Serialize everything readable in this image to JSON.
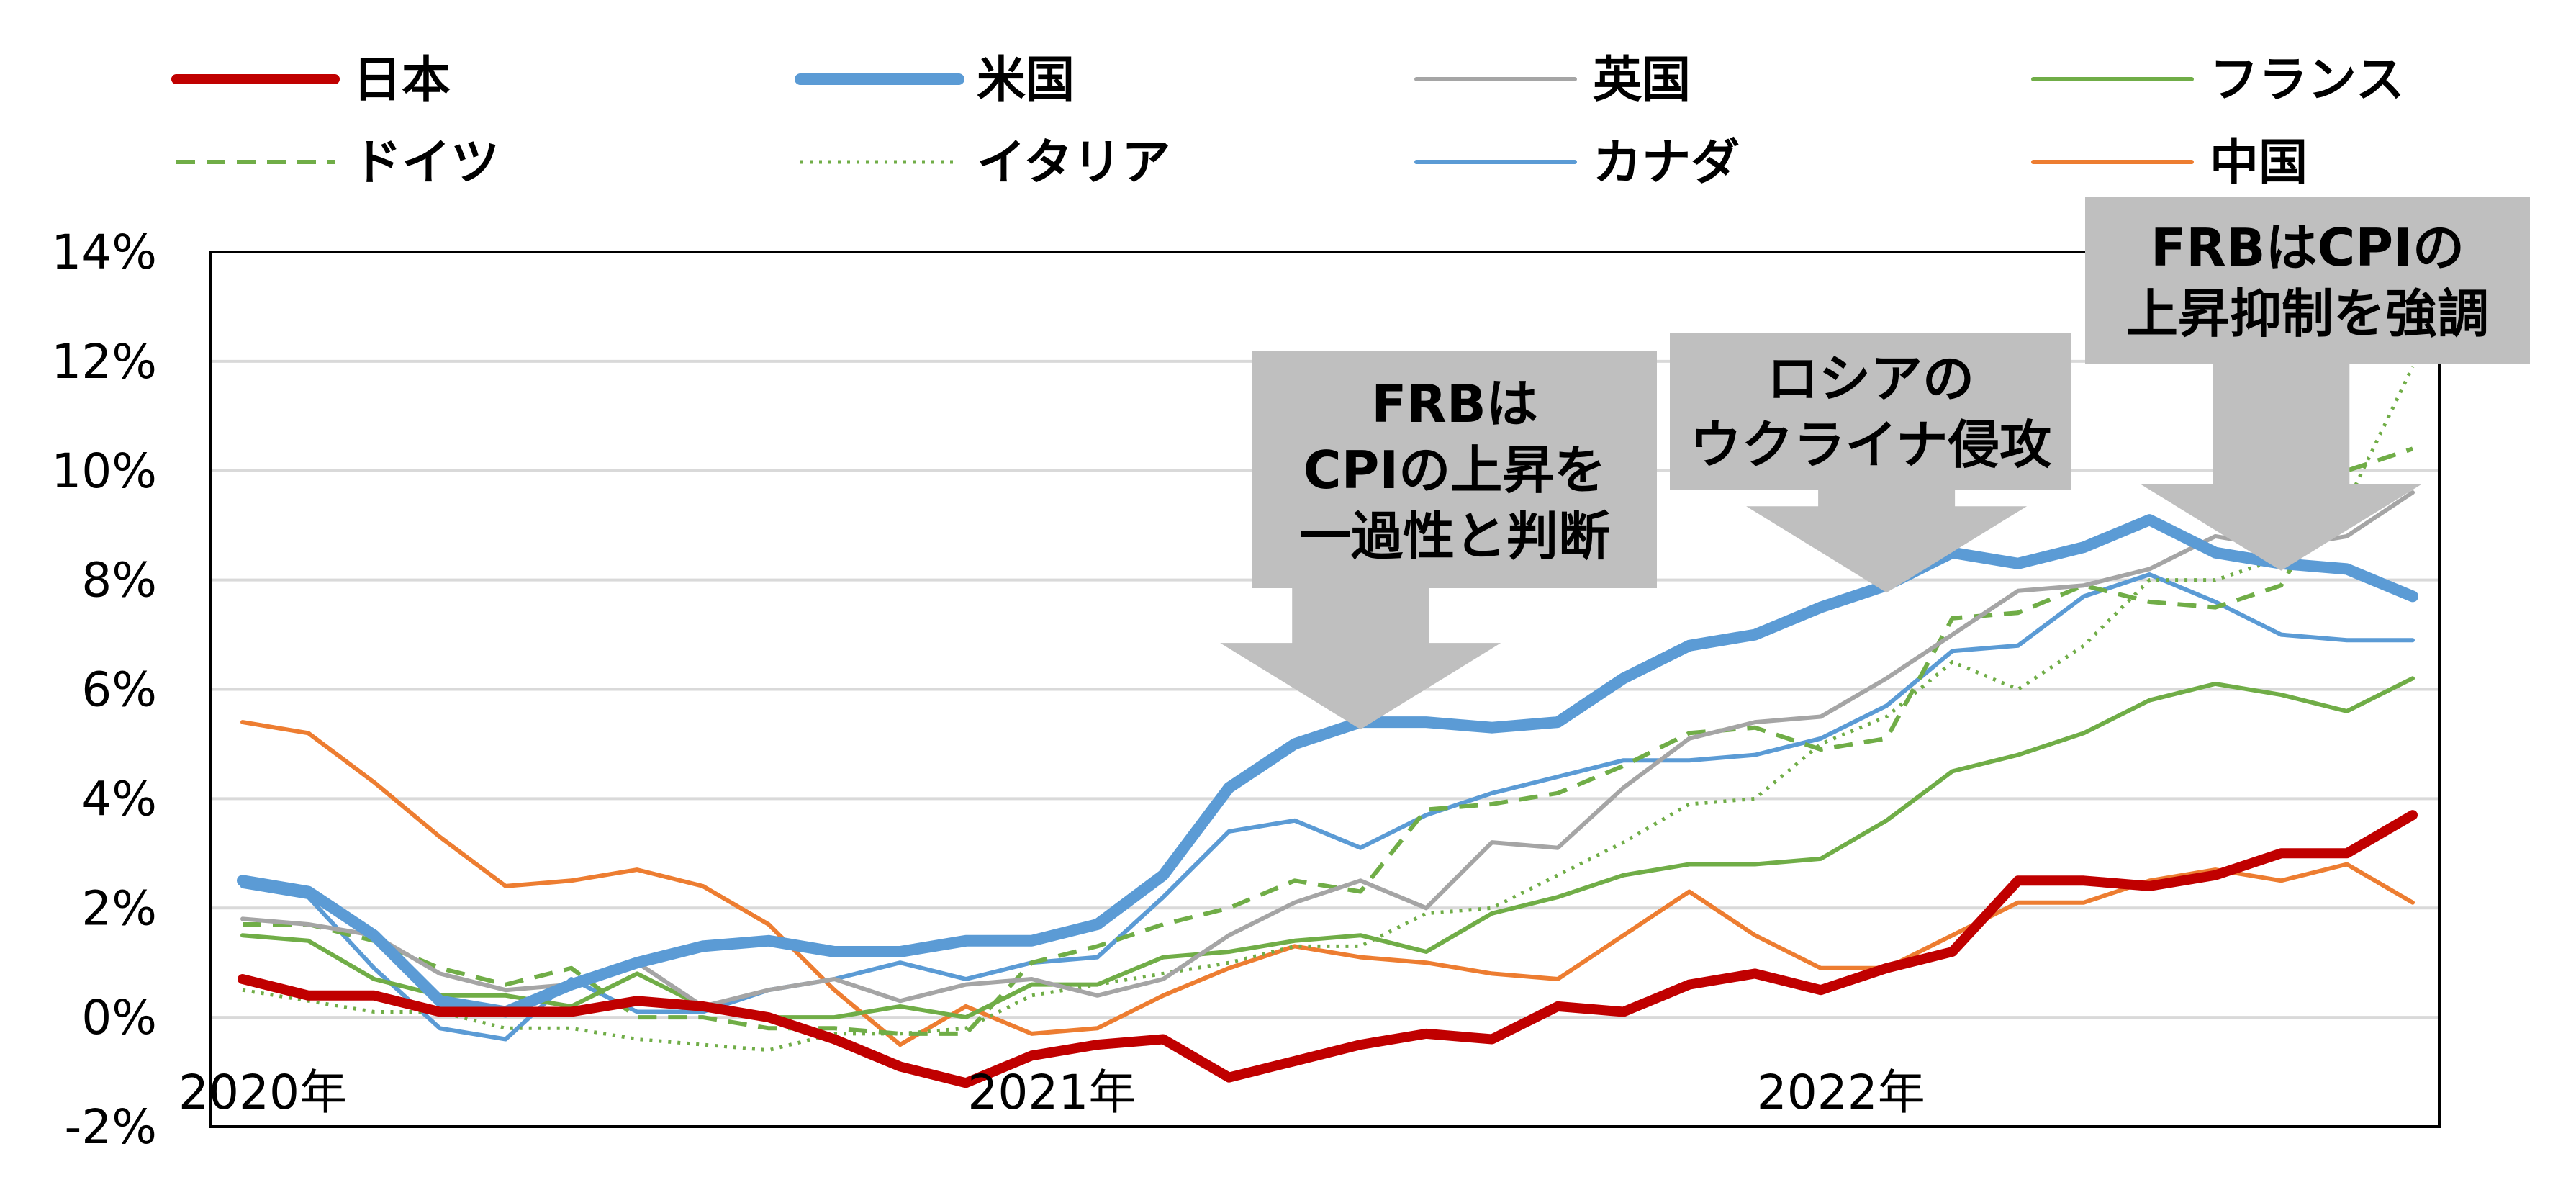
{
  "chart_data": {
    "type": "line",
    "x_labels": [
      "2020-01",
      "2020-02",
      "2020-03",
      "2020-04",
      "2020-05",
      "2020-06",
      "2020-07",
      "2020-08",
      "2020-09",
      "2020-10",
      "2020-11",
      "2020-12",
      "2021-01",
      "2021-02",
      "2021-03",
      "2021-04",
      "2021-05",
      "2021-06",
      "2021-07",
      "2021-08",
      "2021-09",
      "2021-10",
      "2021-11",
      "2021-12",
      "2022-01",
      "2022-02",
      "2022-03",
      "2022-04",
      "2022-05",
      "2022-06",
      "2022-07",
      "2022-08",
      "2022-09",
      "2022-10"
    ],
    "x_tick_labels": [
      {
        "index": 0,
        "label": "2020年"
      },
      {
        "index": 12,
        "label": "2021年"
      },
      {
        "index": 24,
        "label": "2022年"
      }
    ],
    "y_ticks": [
      "14%",
      "12%",
      "10%",
      "8%",
      "6%",
      "4%",
      "2%",
      "0%",
      "-2%"
    ],
    "ylim": [
      -2,
      14
    ],
    "grid": true,
    "legend_position": "top",
    "series": [
      {
        "name": "日本",
        "color": "#c00000",
        "width": 14,
        "dash": "",
        "values": [
          0.7,
          0.4,
          0.4,
          0.1,
          0.1,
          0.1,
          0.3,
          0.2,
          0.0,
          -0.4,
          -0.9,
          -1.2,
          -0.7,
          -0.5,
          -0.4,
          -1.1,
          -0.8,
          -0.5,
          -0.3,
          -0.4,
          0.2,
          0.1,
          0.6,
          0.8,
          0.5,
          0.9,
          1.2,
          2.5,
          2.5,
          2.4,
          2.6,
          3.0,
          3.0,
          3.7
        ]
      },
      {
        "name": "米国",
        "color": "#5b9bd5",
        "width": 16,
        "dash": "",
        "values": [
          2.5,
          2.3,
          1.5,
          0.3,
          0.1,
          0.6,
          1.0,
          1.3,
          1.4,
          1.2,
          1.2,
          1.4,
          1.4,
          1.7,
          2.6,
          4.2,
          5.0,
          5.4,
          5.4,
          5.3,
          5.4,
          6.2,
          6.8,
          7.0,
          7.5,
          7.9,
          8.5,
          8.3,
          8.6,
          9.1,
          8.5,
          8.3,
          8.2,
          7.7
        ]
      },
      {
        "name": "英国",
        "color": "#a5a5a5",
        "width": 6,
        "dash": "",
        "values": [
          1.8,
          1.7,
          1.5,
          0.8,
          0.5,
          0.6,
          1.0,
          0.2,
          0.5,
          0.7,
          0.3,
          0.6,
          0.7,
          0.4,
          0.7,
          1.5,
          2.1,
          2.5,
          2.0,
          3.2,
          3.1,
          4.2,
          5.1,
          5.4,
          5.5,
          6.2,
          7.0,
          7.8,
          7.9,
          8.2,
          8.8,
          8.6,
          8.8,
          9.6
        ]
      },
      {
        "name": "フランス",
        "color": "#70ad47",
        "width": 6,
        "dash": "",
        "values": [
          1.5,
          1.4,
          0.7,
          0.4,
          0.4,
          0.2,
          0.8,
          0.2,
          0.0,
          0.0,
          0.2,
          0.0,
          0.6,
          0.6,
          1.1,
          1.2,
          1.4,
          1.5,
          1.2,
          1.9,
          2.2,
          2.6,
          2.8,
          2.8,
          2.9,
          3.6,
          4.5,
          4.8,
          5.2,
          5.8,
          6.1,
          5.9,
          5.6,
          6.2
        ]
      },
      {
        "name": "ドイツ",
        "color": "#70ad47",
        "width": 6,
        "dash": "26 16",
        "values": [
          1.7,
          1.7,
          1.4,
          0.9,
          0.6,
          0.9,
          0.0,
          0.0,
          -0.2,
          -0.2,
          -0.3,
          -0.3,
          1.0,
          1.3,
          1.7,
          2.0,
          2.5,
          2.3,
          3.8,
          3.9,
          4.1,
          4.6,
          5.2,
          5.3,
          4.9,
          5.1,
          7.3,
          7.4,
          7.9,
          7.6,
          7.5,
          7.9,
          10.0,
          10.4
        ]
      },
      {
        "name": "イタリア",
        "color": "#70ad47",
        "width": 5,
        "dash": "4 9",
        "values": [
          0.5,
          0.3,
          0.1,
          0.1,
          -0.2,
          -0.2,
          -0.4,
          -0.5,
          -0.6,
          -0.3,
          -0.3,
          -0.2,
          0.4,
          0.6,
          0.8,
          1.0,
          1.3,
          1.3,
          1.9,
          2.0,
          2.6,
          3.2,
          3.9,
          4.0,
          5.0,
          5.5,
          6.5,
          6.0,
          6.8,
          8.0,
          8.0,
          8.4,
          9.4,
          11.9
        ]
      },
      {
        "name": "カナダ",
        "color": "#5b9bd5",
        "width": 6,
        "dash": "",
        "values": [
          2.4,
          2.2,
          0.9,
          -0.2,
          -0.4,
          0.7,
          0.1,
          0.1,
          0.5,
          0.7,
          1.0,
          0.7,
          1.0,
          1.1,
          2.2,
          3.4,
          3.6,
          3.1,
          3.7,
          4.1,
          4.4,
          4.7,
          4.7,
          4.8,
          5.1,
          5.7,
          6.7,
          6.8,
          7.7,
          8.1,
          7.6,
          7.0,
          6.9,
          6.9
        ]
      },
      {
        "name": "中国",
        "color": "#ed7d31",
        "width": 6,
        "dash": "",
        "values": [
          5.4,
          5.2,
          4.3,
          3.3,
          2.4,
          2.5,
          2.7,
          2.4,
          1.7,
          0.5,
          -0.5,
          0.2,
          -0.3,
          -0.2,
          0.4,
          0.9,
          1.3,
          1.1,
          1.0,
          0.8,
          0.7,
          1.5,
          2.3,
          1.5,
          0.9,
          0.9,
          1.5,
          2.1,
          2.1,
          2.5,
          2.7,
          2.5,
          2.8,
          2.1
        ]
      }
    ],
    "annotations": [
      {
        "lines": [
          "FRBは",
          "CPIの上昇を",
          "一過性と判断"
        ],
        "arrow_at_index": 17
      },
      {
        "lines": [
          "ロシアの",
          "ウクライナ侵攻"
        ],
        "arrow_at_index": 25
      },
      {
        "lines": [
          "FRBはCPIの",
          "上昇抑制を強調"
        ],
        "arrow_at_index": 31
      }
    ]
  }
}
